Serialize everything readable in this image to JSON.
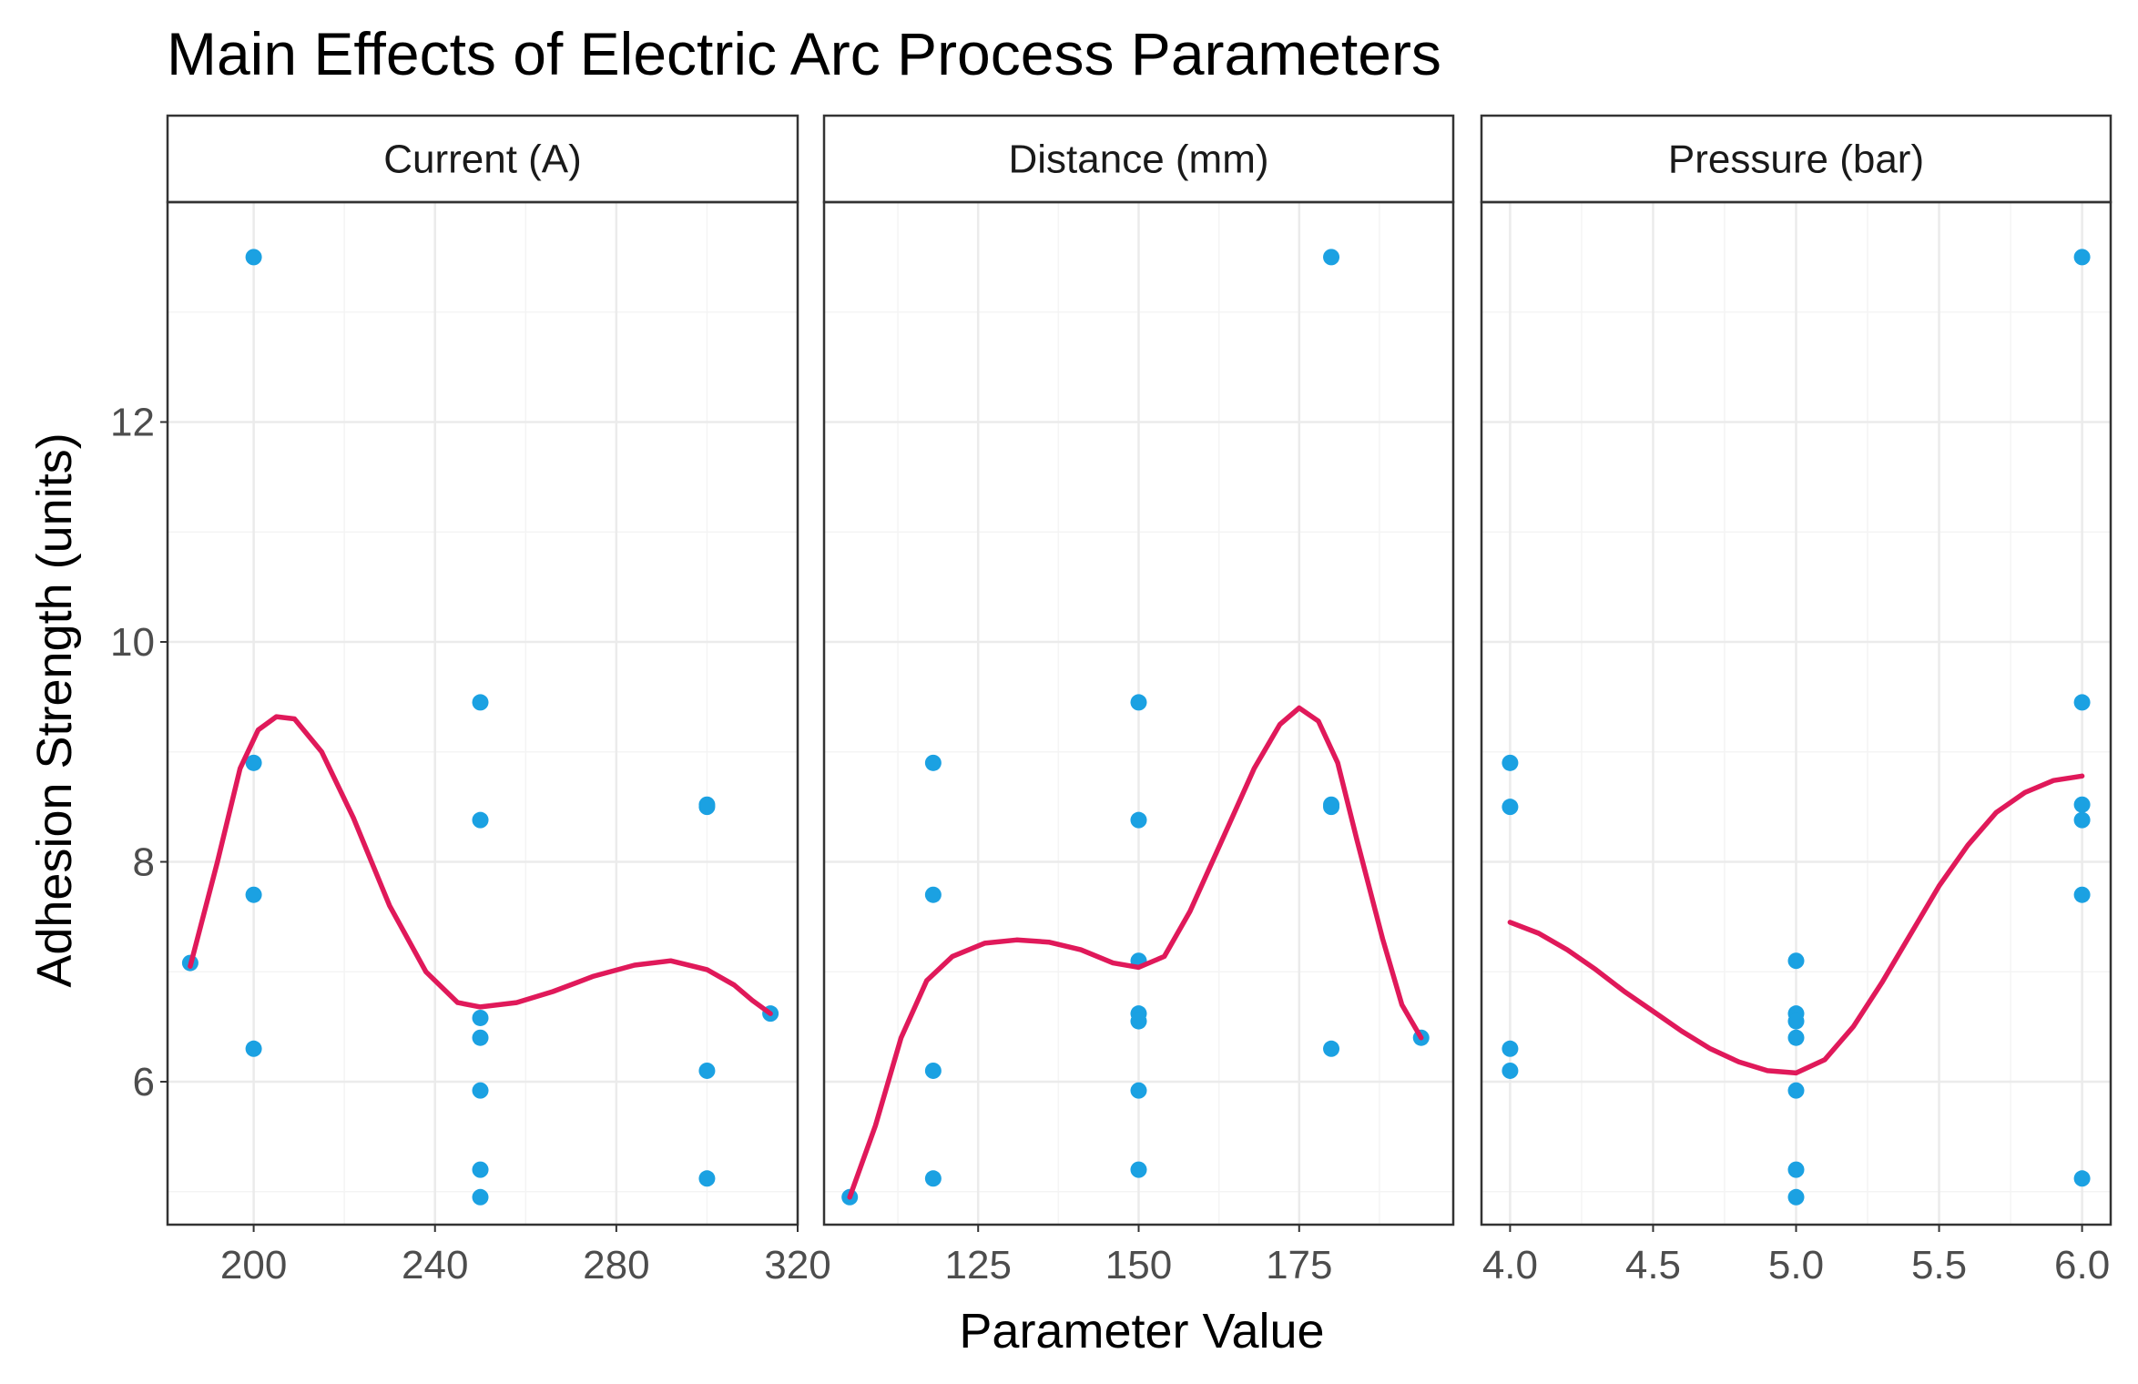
{
  "chart_data": {
    "type": "scatter",
    "title": "Main Effects of Electric Arc Process Parameters",
    "xlabel": "Parameter Value",
    "ylabel": "Adhesion Strength (units)",
    "ylim": [
      4.7,
      14.0
    ],
    "y_ticks": [
      6,
      8,
      10,
      12
    ],
    "y_tick_labels": [
      "6",
      "8",
      "10",
      "12"
    ],
    "grid": true,
    "colors": {
      "points": "#1ba1e2",
      "smooth_line": "#e0195a",
      "panel_border": "#333333",
      "strip_fill": "#ffffff",
      "grid": "#ebebeb"
    },
    "panels": [
      {
        "name": "Current (A)",
        "xlim": [
          181,
          320
        ],
        "x_ticks": [
          200,
          240,
          280,
          320
        ],
        "x_tick_labels": [
          "200",
          "240",
          "280",
          "320"
        ],
        "points": [
          [
            186,
            7.08
          ],
          [
            200,
            13.5
          ],
          [
            200,
            8.9
          ],
          [
            200,
            7.7
          ],
          [
            200,
            6.3
          ],
          [
            250,
            9.45
          ],
          [
            250,
            8.38
          ],
          [
            250,
            6.58
          ],
          [
            250,
            6.4
          ],
          [
            250,
            5.92
          ],
          [
            250,
            5.2
          ],
          [
            250,
            4.95
          ],
          [
            300,
            8.52
          ],
          [
            300,
            8.5
          ],
          [
            300,
            6.1
          ],
          [
            300,
            5.12
          ],
          [
            314,
            6.62
          ]
        ],
        "smooth": [
          [
            186,
            7.05
          ],
          [
            192,
            8.0
          ],
          [
            197,
            8.85
          ],
          [
            201,
            9.2
          ],
          [
            205,
            9.32
          ],
          [
            209,
            9.3
          ],
          [
            215,
            9.0
          ],
          [
            222,
            8.4
          ],
          [
            230,
            7.6
          ],
          [
            238,
            7.0
          ],
          [
            245,
            6.72
          ],
          [
            250,
            6.68
          ],
          [
            258,
            6.72
          ],
          [
            266,
            6.82
          ],
          [
            275,
            6.96
          ],
          [
            284,
            7.06
          ],
          [
            292,
            7.1
          ],
          [
            300,
            7.02
          ],
          [
            306,
            6.88
          ],
          [
            310,
            6.74
          ],
          [
            314,
            6.62
          ]
        ]
      },
      {
        "name": "Distance (mm)",
        "xlim": [
          101,
          199
        ],
        "x_ticks": [
          125,
          150,
          175
        ],
        "x_tick_labels": [
          "125",
          "150",
          "175"
        ],
        "points": [
          [
            105,
            4.95
          ],
          [
            118,
            8.9
          ],
          [
            118,
            7.7
          ],
          [
            118,
            6.1
          ],
          [
            118,
            5.12
          ],
          [
            150,
            9.45
          ],
          [
            150,
            8.38
          ],
          [
            150,
            7.1
          ],
          [
            150,
            6.62
          ],
          [
            150,
            6.55
          ],
          [
            150,
            5.92
          ],
          [
            150,
            5.2
          ],
          [
            180,
            13.5
          ],
          [
            180,
            8.52
          ],
          [
            180,
            8.5
          ],
          [
            180,
            6.3
          ],
          [
            194,
            6.4
          ]
        ],
        "smooth": [
          [
            105,
            4.95
          ],
          [
            109,
            5.6
          ],
          [
            113,
            6.4
          ],
          [
            117,
            6.92
          ],
          [
            121,
            7.14
          ],
          [
            126,
            7.26
          ],
          [
            131,
            7.29
          ],
          [
            136,
            7.27
          ],
          [
            141,
            7.2
          ],
          [
            146,
            7.08
          ],
          [
            150,
            7.04
          ],
          [
            154,
            7.14
          ],
          [
            158,
            7.55
          ],
          [
            163,
            8.2
          ],
          [
            168,
            8.85
          ],
          [
            172,
            9.25
          ],
          [
            175,
            9.4
          ],
          [
            178,
            9.28
          ],
          [
            181,
            8.9
          ],
          [
            184,
            8.2
          ],
          [
            188,
            7.3
          ],
          [
            191,
            6.7
          ],
          [
            194,
            6.4
          ]
        ]
      },
      {
        "name": "Pressure (bar)",
        "xlim": [
          3.9,
          6.1
        ],
        "x_ticks": [
          4.0,
          4.5,
          5.0,
          5.5,
          6.0
        ],
        "x_tick_labels": [
          "4.0",
          "4.5",
          "5.0",
          "5.5",
          "6.0"
        ],
        "points": [
          [
            4.0,
            8.9
          ],
          [
            4.0,
            8.5
          ],
          [
            4.0,
            6.3
          ],
          [
            4.0,
            6.1
          ],
          [
            5.0,
            7.1
          ],
          [
            5.0,
            6.62
          ],
          [
            5.0,
            6.55
          ],
          [
            5.0,
            6.4
          ],
          [
            5.0,
            5.92
          ],
          [
            5.0,
            5.2
          ],
          [
            5.0,
            4.95
          ],
          [
            6.0,
            13.5
          ],
          [
            6.0,
            9.45
          ],
          [
            6.0,
            8.52
          ],
          [
            6.0,
            8.38
          ],
          [
            6.0,
            7.7
          ],
          [
            6.0,
            5.12
          ]
        ],
        "smooth": [
          [
            4.0,
            7.45
          ],
          [
            4.1,
            7.35
          ],
          [
            4.2,
            7.2
          ],
          [
            4.3,
            7.02
          ],
          [
            4.4,
            6.82
          ],
          [
            4.5,
            6.64
          ],
          [
            4.6,
            6.46
          ],
          [
            4.7,
            6.3
          ],
          [
            4.8,
            6.18
          ],
          [
            4.9,
            6.1
          ],
          [
            5.0,
            6.08
          ],
          [
            5.1,
            6.2
          ],
          [
            5.2,
            6.5
          ],
          [
            5.3,
            6.9
          ],
          [
            5.4,
            7.34
          ],
          [
            5.5,
            7.78
          ],
          [
            5.6,
            8.15
          ],
          [
            5.7,
            8.45
          ],
          [
            5.8,
            8.63
          ],
          [
            5.9,
            8.74
          ],
          [
            6.0,
            8.78
          ]
        ]
      }
    ]
  }
}
